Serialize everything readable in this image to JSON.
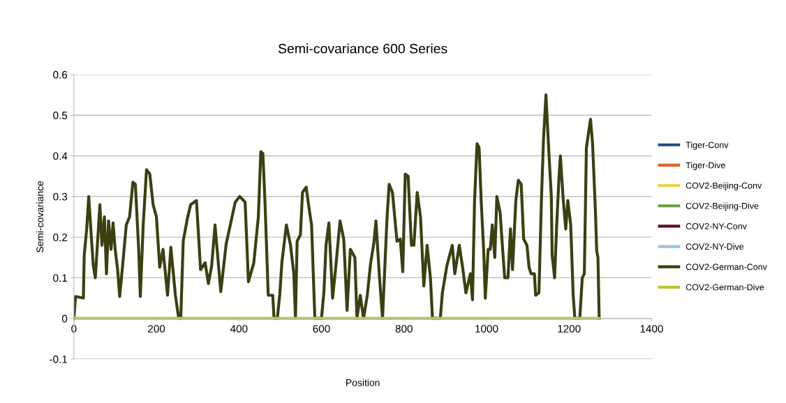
{
  "chart_data": {
    "type": "line",
    "title": "Semi-covariance 600 Series",
    "xlabel": "Position",
    "ylabel": "Semi-covariance",
    "xlim": [
      0,
      1400
    ],
    "xticks": [
      0,
      200,
      400,
      600,
      800,
      1000,
      1200,
      1400
    ],
    "ylim": [
      -0.1,
      0.6
    ],
    "yticks": [
      -0.1,
      0,
      0.1,
      0.2,
      0.3,
      0.4,
      0.5,
      0.6
    ],
    "grid": "y",
    "legend": "right",
    "marker": "none",
    "line_style": "solid",
    "series": [
      {
        "name": "Tiger-Conv",
        "color": "#1f4e79"
      },
      {
        "name": "Tiger-Dive",
        "color": "#e0622a"
      },
      {
        "name": "COV2-Beijing-Conv",
        "color": "#e8d44d"
      },
      {
        "name": "COV2-Beijing-Dive",
        "color": "#6a9a3c"
      },
      {
        "name": "COV2-NY-Conv",
        "color": "#5c1028"
      },
      {
        "name": "COV2-NY-Dive",
        "color": "#9cc3da"
      },
      {
        "name": "COV2-German-Conv",
        "color": "#3b3f12",
        "x": [
          0,
          4,
          23,
          25,
          31,
          36,
          41,
          47,
          52,
          63,
          68,
          74,
          79,
          84,
          90,
          95,
          100,
          106,
          111,
          119,
          127,
          135,
          143,
          149,
          157,
          161,
          168,
          176,
          184,
          192,
          200,
          208,
          216,
          227,
          235,
          246,
          254,
          259,
          265,
          275,
          283,
          297,
          307,
          318,
          326,
          334,
          342,
          356,
          369,
          391,
          402,
          415,
          423,
          436,
          447,
          453,
          458,
          463,
          471,
          482,
          485,
          493,
          499,
          504,
          515,
          525,
          533,
          537,
          541,
          549,
          554,
          563,
          570,
          576,
          584,
          600,
          606,
          611,
          618,
          627,
          634,
          645,
          654,
          662,
          670,
          681,
          686,
          694,
          702,
          711,
          719,
          727,
          732,
          740,
          748,
          759,
          764,
          772,
          783,
          791,
          797,
          803,
          810,
          818,
          824,
          832,
          840,
          848,
          856,
          864,
          869,
          888,
          893,
          904,
          917,
          923,
          934,
          942,
          950,
          961,
          966,
          971,
          977,
          982,
          987,
          993,
          997,
          1004,
          1009,
          1014,
          1020,
          1025,
          1033,
          1039,
          1044,
          1052,
          1058,
          1063,
          1071,
          1077,
          1084,
          1090,
          1098,
          1103,
          1108,
          1116,
          1119,
          1127,
          1133,
          1138,
          1144,
          1147,
          1151,
          1157,
          1159,
          1165,
          1170,
          1176,
          1179,
          1186,
          1192,
          1197,
          1204,
          1210,
          1214,
          1226,
          1232,
          1237,
          1242,
          1252,
          1257,
          1264,
          1267,
          1270,
          1273
        ],
        "values": [
          0,
          0.054,
          0.05,
          0.155,
          0.22,
          0.3,
          0.22,
          0.13,
          0.1,
          0.28,
          0.18,
          0.25,
          0.11,
          0.24,
          0.17,
          0.235,
          0.17,
          0.12,
          0.054,
          0.14,
          0.23,
          0.25,
          0.335,
          0.33,
          0.17,
          0.054,
          0.23,
          0.366,
          0.355,
          0.28,
          0.25,
          0.126,
          0.17,
          0.057,
          0.175,
          0.057,
          0,
          0,
          0.19,
          0.246,
          0.28,
          0.29,
          0.12,
          0.137,
          0.086,
          0.13,
          0.23,
          0.066,
          0.183,
          0.286,
          0.3,
          0.286,
          0.09,
          0.137,
          0.25,
          0.41,
          0.406,
          0.29,
          0.057,
          0.057,
          0,
          0,
          0.06,
          0.137,
          0.23,
          0.18,
          0.11,
          0,
          0.19,
          0.206,
          0.31,
          0.323,
          0.27,
          0.23,
          0,
          0,
          0.066,
          0.18,
          0.235,
          0.05,
          0.12,
          0.24,
          0.195,
          0.02,
          0.17,
          0.15,
          0,
          0.057,
          0,
          0.057,
          0.135,
          0.186,
          0.24,
          0.11,
          0,
          0.25,
          0.33,
          0.31,
          0.19,
          0.195,
          0.115,
          0.355,
          0.35,
          0.18,
          0.18,
          0.31,
          0.25,
          0.08,
          0.18,
          0.1,
          0,
          0,
          0.063,
          0.13,
          0.18,
          0.11,
          0.18,
          0.126,
          0.063,
          0.11,
          0.046,
          0.29,
          0.43,
          0.42,
          0.29,
          0.17,
          0.05,
          0.17,
          0.17,
          0.23,
          0.15,
          0.3,
          0.26,
          0.17,
          0.1,
          0.1,
          0.22,
          0.12,
          0.29,
          0.34,
          0.33,
          0.195,
          0.18,
          0.126,
          0.11,
          0.11,
          0.057,
          0.063,
          0.29,
          0.44,
          0.55,
          0.49,
          0.41,
          0.3,
          0.155,
          0.1,
          0.23,
          0.355,
          0.4,
          0.29,
          0.22,
          0.29,
          0.23,
          0.057,
          0,
          0,
          0.1,
          0.11,
          0.42,
          0.49,
          0.43,
          0.26,
          0.166,
          0.15,
          0
        ]
      },
      {
        "name": "COV2-German-Dive",
        "color": "#b5c934",
        "x": [
          0,
          1273
        ],
        "values": [
          0,
          0
        ]
      }
    ]
  }
}
